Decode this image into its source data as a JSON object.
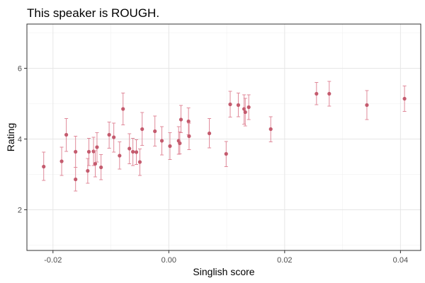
{
  "chart_data": {
    "type": "scatter",
    "title": "This speaker is ROUGH.",
    "xlabel": "Singlish score",
    "ylabel": "Rating",
    "xlim": [
      -0.0245,
      0.0435
    ],
    "ylim": [
      0.85,
      7.25
    ],
    "x_ticks": [
      -0.02,
      0.0,
      0.02,
      0.04
    ],
    "x_tick_labels": [
      "-0.02",
      "0.00",
      "0.02",
      "0.04"
    ],
    "x_minor_ticks": [
      -0.01,
      0.01,
      0.03
    ],
    "y_ticks": [
      2,
      4,
      6
    ],
    "y_tick_labels": [
      "2",
      "4",
      "6"
    ],
    "y_minor_ticks": [
      1,
      3,
      5,
      7
    ],
    "grid": true,
    "point_color": "#C45B6E",
    "errorbar_color": "#E08A9A",
    "points": [
      {
        "x": -0.0216,
        "y": 3.22,
        "ylo": 2.83,
        "yhi": 3.63
      },
      {
        "x": -0.0185,
        "y": 3.37,
        "ylo": 2.97,
        "yhi": 3.77
      },
      {
        "x": -0.0177,
        "y": 4.12,
        "ylo": 3.65,
        "yhi": 4.58
      },
      {
        "x": -0.0161,
        "y": 3.64,
        "ylo": 3.2,
        "yhi": 4.08
      },
      {
        "x": -0.0161,
        "y": 2.86,
        "ylo": 2.53,
        "yhi": 3.2
      },
      {
        "x": -0.014,
        "y": 3.1,
        "ylo": 2.75,
        "yhi": 3.45
      },
      {
        "x": -0.0138,
        "y": 3.64,
        "ylo": 3.25,
        "yhi": 4.02
      },
      {
        "x": -0.013,
        "y": 3.65,
        "ylo": 3.25,
        "yhi": 4.05
      },
      {
        "x": -0.0127,
        "y": 3.3,
        "ylo": 2.93,
        "yhi": 3.67
      },
      {
        "x": -0.0124,
        "y": 3.77,
        "ylo": 3.35,
        "yhi": 4.18
      },
      {
        "x": -0.0117,
        "y": 3.2,
        "ylo": 2.85,
        "yhi": 3.56
      },
      {
        "x": -0.0103,
        "y": 4.12,
        "ylo": 3.74,
        "yhi": 4.48
      },
      {
        "x": -0.0095,
        "y": 4.05,
        "ylo": 3.63,
        "yhi": 4.45
      },
      {
        "x": -0.0085,
        "y": 3.53,
        "ylo": 3.15,
        "yhi": 3.92
      },
      {
        "x": -0.0079,
        "y": 4.85,
        "ylo": 4.4,
        "yhi": 5.3
      },
      {
        "x": -0.0068,
        "y": 3.73,
        "ylo": 3.3,
        "yhi": 4.15
      },
      {
        "x": -0.0062,
        "y": 3.64,
        "ylo": 3.25,
        "yhi": 4.02
      },
      {
        "x": -0.0056,
        "y": 3.63,
        "ylo": 3.28,
        "yhi": 3.98
      },
      {
        "x": -0.005,
        "y": 3.35,
        "ylo": 2.97,
        "yhi": 3.72
      },
      {
        "x": -0.0046,
        "y": 4.28,
        "ylo": 3.82,
        "yhi": 4.75
      },
      {
        "x": -0.0024,
        "y": 4.22,
        "ylo": 3.8,
        "yhi": 4.65
      },
      {
        "x": -0.0012,
        "y": 3.95,
        "ylo": 3.55,
        "yhi": 4.35
      },
      {
        "x": 0.0002,
        "y": 3.8,
        "ylo": 3.42,
        "yhi": 4.18
      },
      {
        "x": 0.0017,
        "y": 3.95,
        "ylo": 3.57,
        "yhi": 4.35
      },
      {
        "x": 0.0019,
        "y": 3.88,
        "ylo": 3.58,
        "yhi": 4.2
      },
      {
        "x": 0.0021,
        "y": 4.55,
        "ylo": 4.18,
        "yhi": 4.95
      },
      {
        "x": 0.0034,
        "y": 4.5,
        "ylo": 4.12,
        "yhi": 4.88
      },
      {
        "x": 0.0035,
        "y": 4.08,
        "ylo": 3.7,
        "yhi": 4.45
      },
      {
        "x": 0.007,
        "y": 4.16,
        "ylo": 3.75,
        "yhi": 4.58
      },
      {
        "x": 0.0099,
        "y": 3.58,
        "ylo": 3.22,
        "yhi": 3.93
      },
      {
        "x": 0.0106,
        "y": 4.98,
        "ylo": 4.62,
        "yhi": 5.35
      },
      {
        "x": 0.012,
        "y": 4.96,
        "ylo": 4.63,
        "yhi": 5.3
      },
      {
        "x": 0.013,
        "y": 4.85,
        "ylo": 4.42,
        "yhi": 5.25
      },
      {
        "x": 0.0132,
        "y": 4.76,
        "ylo": 4.37,
        "yhi": 5.15
      },
      {
        "x": 0.0138,
        "y": 4.9,
        "ylo": 4.55,
        "yhi": 5.25
      },
      {
        "x": 0.0176,
        "y": 4.28,
        "ylo": 3.92,
        "yhi": 4.63
      },
      {
        "x": 0.0255,
        "y": 5.28,
        "ylo": 4.97,
        "yhi": 5.6
      },
      {
        "x": 0.0277,
        "y": 5.28,
        "ylo": 4.93,
        "yhi": 5.63
      },
      {
        "x": 0.0342,
        "y": 4.96,
        "ylo": 4.55,
        "yhi": 5.37
      },
      {
        "x": 0.0407,
        "y": 5.14,
        "ylo": 4.78,
        "yhi": 5.5
      }
    ]
  }
}
